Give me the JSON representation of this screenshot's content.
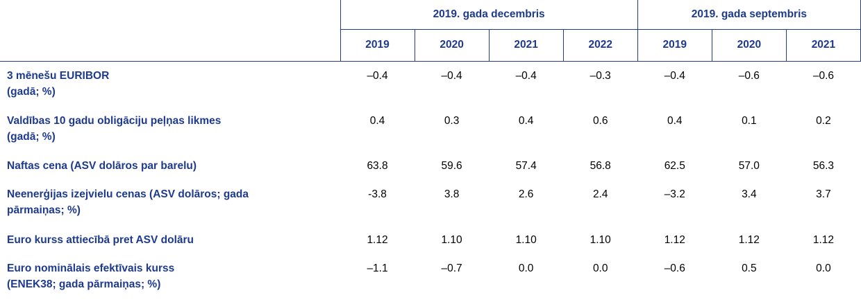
{
  "table": {
    "column_groups": [
      {
        "label": "2019. gada decembris",
        "span": 4
      },
      {
        "label": "2019. gada septembris",
        "span": 3
      }
    ],
    "years": [
      "2019",
      "2020",
      "2021",
      "2022",
      "2019",
      "2020",
      "2021"
    ],
    "rows": [
      {
        "lines": [
          "3 mēnešu EURIBOR",
          "(gadā; %)"
        ],
        "values": [
          "–0.4",
          "–0.4",
          "–0.4",
          "–0.3",
          "–0.4",
          "–0.6",
          "–0.6"
        ]
      },
      {
        "lines": [
          "Valdības 10 gadu obligāciju peļņas likmes",
          "(gadā; %)"
        ],
        "values": [
          "0.4",
          "0.3",
          "0.4",
          "0.6",
          "0.4",
          "0.1",
          "0.2"
        ]
      },
      {
        "lines": [
          "Naftas cena (ASV dolāros par barelu)"
        ],
        "values": [
          "63.8",
          "59.6",
          "57.4",
          "56.8",
          "62.5",
          "57.0",
          "56.3"
        ]
      },
      {
        "lines": [
          "Neenerģijas izejvielu cenas (ASV dolāros; gada pārmaiņas; %)"
        ],
        "values": [
          "-3.8",
          "3.8",
          "2.6",
          "2.4",
          "–3.2",
          "3.4",
          "3.7"
        ]
      },
      {
        "lines": [
          "Euro kurss attiecībā pret ASV dolāru"
        ],
        "values": [
          "1.12",
          "1.10",
          "1.10",
          "1.10",
          "1.12",
          "1.12",
          "1.12"
        ]
      },
      {
        "lines": [
          "Euro nominālais efektīvais kurss",
          "(ENEK38; gada pārmaiņas; %)"
        ],
        "values": [
          "–1.1",
          "–0.7",
          "0.0",
          "0.0",
          "–0.6",
          "0.5",
          "0.0"
        ]
      }
    ]
  }
}
